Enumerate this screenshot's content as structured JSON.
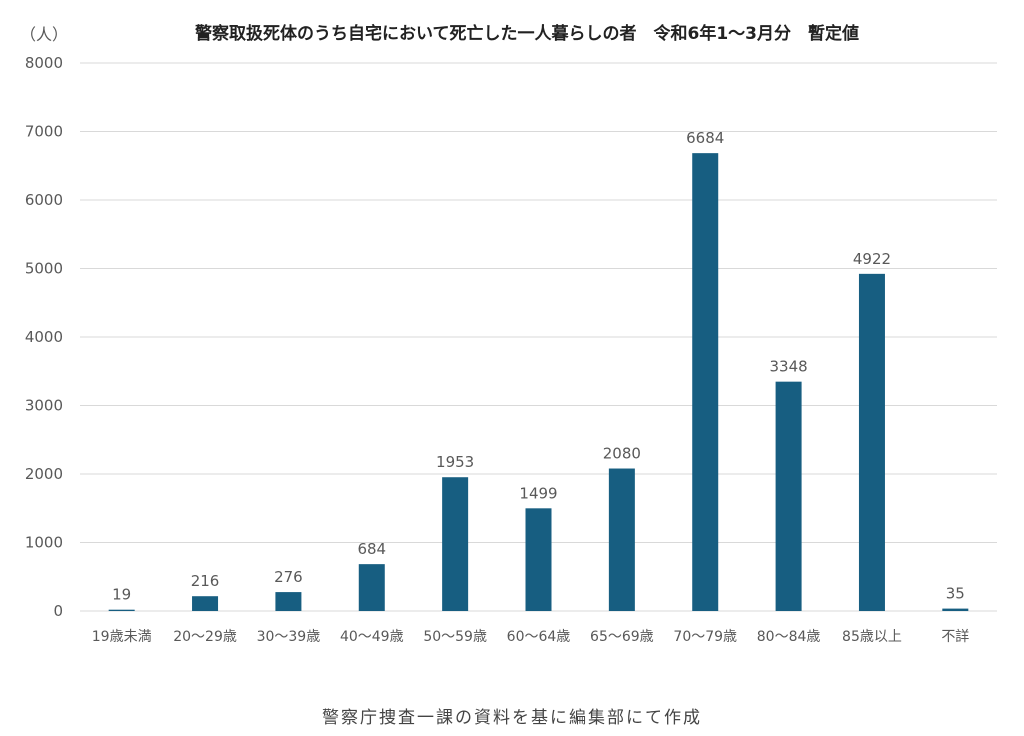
{
  "chart_data": {
    "type": "bar",
    "title": "警察取扱死体のうち自宅において死亡した一人暮らしの者　令和6年1～3月分　暫定値",
    "ylabel": "（人）",
    "xlabel": "",
    "categories": [
      "19歳未満",
      "20～29歳",
      "30～39歳",
      "40～49歳",
      "50～59歳",
      "60～64歳",
      "65～69歳",
      "70～79歳",
      "80～84歳",
      "85歳以上",
      "不詳"
    ],
    "values": [
      19,
      216,
      276,
      684,
      1953,
      1499,
      2080,
      6684,
      3348,
      4922,
      35
    ],
    "ylim": [
      0,
      8000
    ],
    "yticks": [
      0,
      1000,
      2000,
      3000,
      4000,
      5000,
      6000,
      7000,
      8000
    ],
    "grid": true,
    "data_labels": true
  },
  "colors": {
    "bar": "#175E81",
    "grid": "#d9d9d9",
    "axis_text": "#595959",
    "title": "#222222"
  },
  "footer": {
    "source": "警察庁捜査一課の資料を基に編集部にて作成"
  }
}
